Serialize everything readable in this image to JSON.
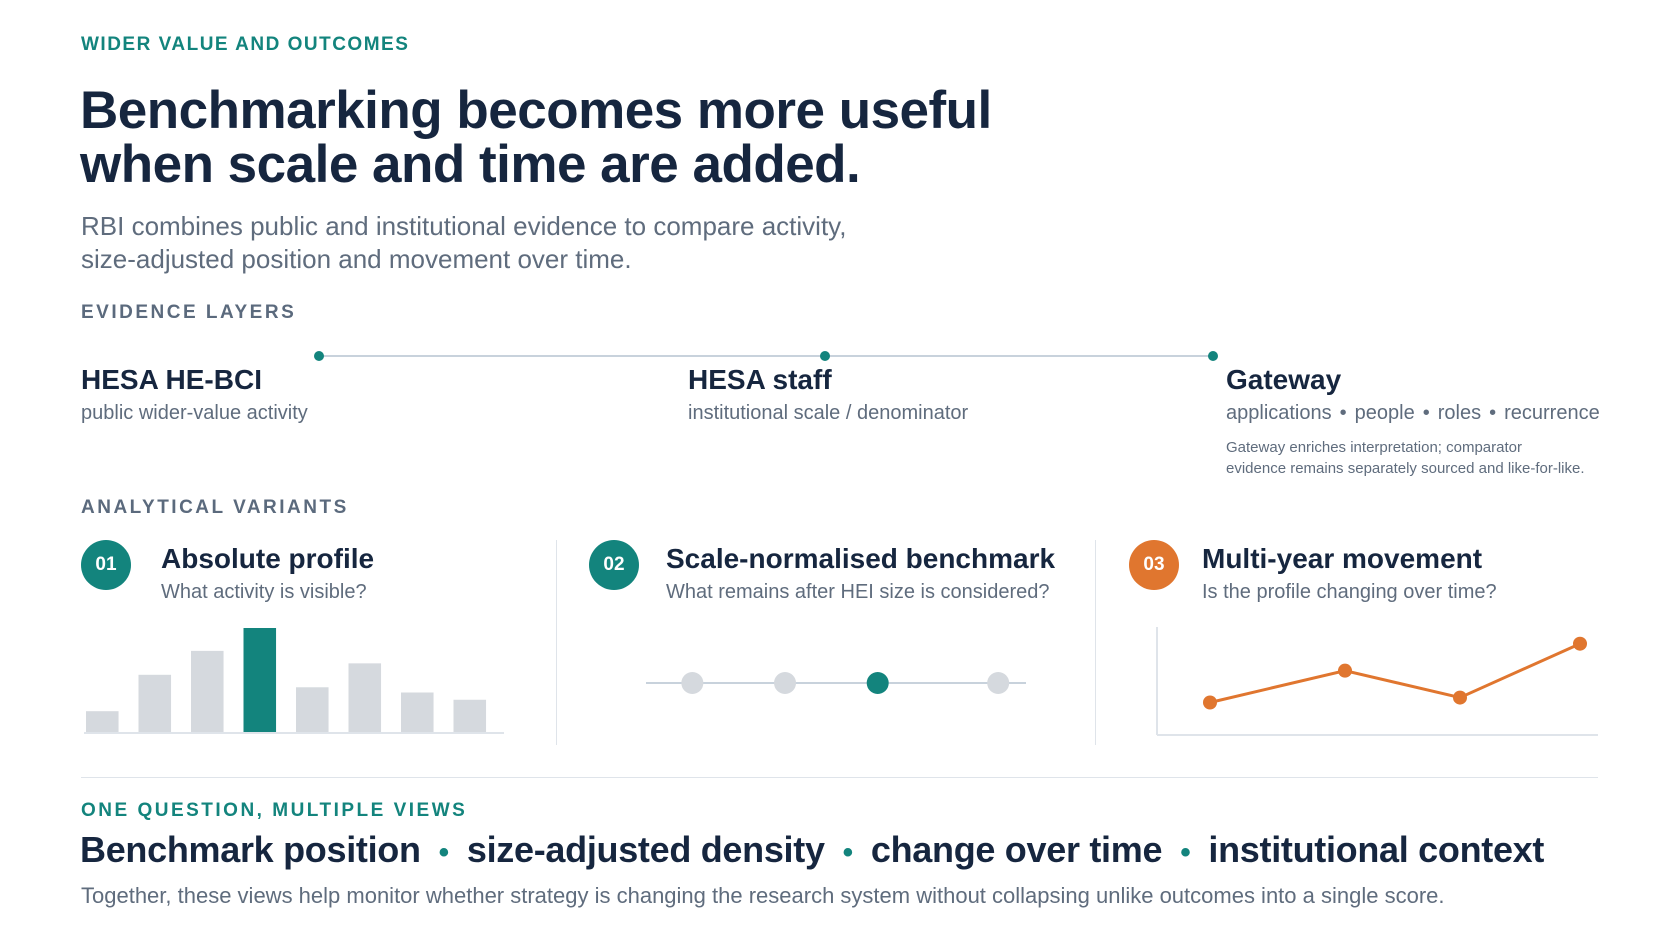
{
  "header": {
    "eyebrow": "WIDER VALUE AND OUTCOMES",
    "title_line1": "Benchmarking becomes more useful",
    "title_line2": "when scale and time are added.",
    "subtitle_line1": "RBI combines public and institutional evidence to compare activity,",
    "subtitle_line2": "size-adjusted position and movement over time."
  },
  "evidence": {
    "heading": "EVIDENCE LAYERS",
    "layers": [
      {
        "name": "HESA HE-BCI",
        "desc": "public wider-value activity"
      },
      {
        "name": "HESA staff",
        "desc": "institutional scale / denominator"
      },
      {
        "name": "Gateway",
        "desc_items": [
          "applications",
          "people",
          "roles",
          "recurrence"
        ],
        "separator": "•",
        "note_line1": "Gateway enriches interpretation; comparator",
        "note_line2": "evidence remains separately sourced and like-for-like."
      }
    ]
  },
  "variants": {
    "heading": "ANALYTICAL VARIANTS",
    "items": [
      {
        "num": "01",
        "title": "Absolute profile",
        "question": "What activity is visible?",
        "color": "#13847d"
      },
      {
        "num": "02",
        "title": "Scale-normalised benchmark",
        "question": "What remains after HEI size is considered?",
        "color": "#13847d"
      },
      {
        "num": "03",
        "title": "Multi-year movement",
        "question": "Is the profile changing over time?",
        "color": "#e0762f"
      }
    ]
  },
  "chart_data": [
    {
      "type": "bar",
      "values": [
        2,
        5.5,
        7.8,
        10,
        4.3,
        6.6,
        3.8,
        3.1
      ],
      "highlight_index": 3,
      "colors": {
        "base": "#d5d9de",
        "highlight": "#13847d"
      }
    },
    {
      "type": "scatter",
      "values": [
        1,
        2,
        3,
        4.3
      ],
      "highlight_index": 2,
      "colors": {
        "base": "#d5d9de",
        "highlight": "#13847d"
      }
    },
    {
      "type": "line",
      "values": [
        1,
        2.3,
        1.2,
        3.4
      ],
      "colors": {
        "line": "#e0762f"
      }
    }
  ],
  "views": {
    "heading": "ONE QUESTION, MULTIPLE VIEWS",
    "items": [
      "Benchmark position",
      "size-adjusted density",
      "change over time",
      "institutional context"
    ],
    "separator": "•",
    "footnote": "Together, these views help monitor whether strategy is changing the research system without collapsing unlike outcomes into a single score."
  }
}
